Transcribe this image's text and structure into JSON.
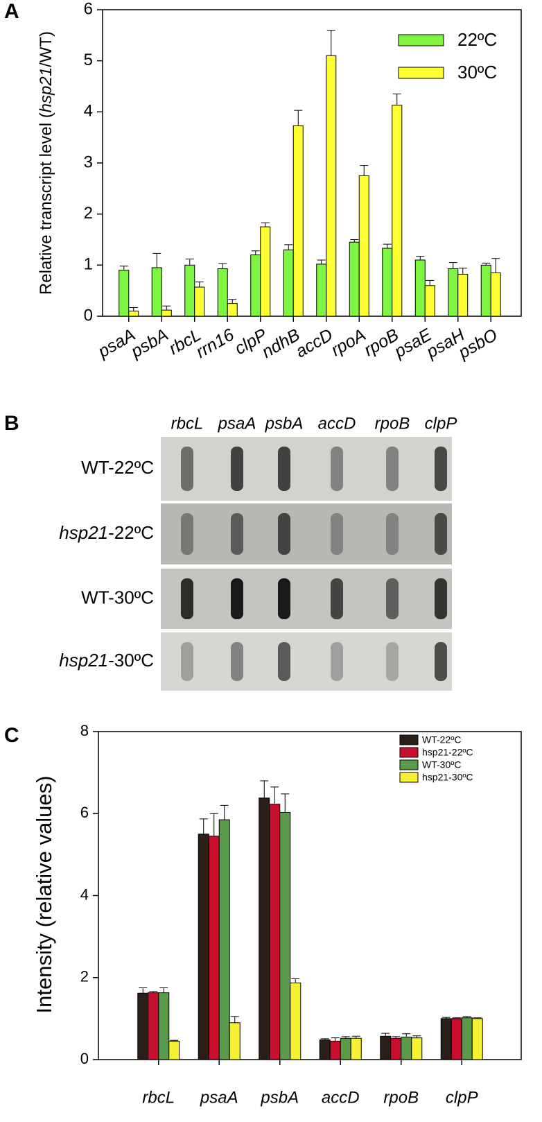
{
  "panel_labels": [
    "A",
    "B",
    "C"
  ],
  "chart_data": [
    {
      "type": "bar",
      "ylabel": {
        "plain": "Relative transcript level (",
        "italic": "hsp21",
        "tail": "/WT)"
      },
      "categories": [
        "psaA",
        "psbA",
        "rbcL",
        "rrn16",
        "clpP",
        "ndhB",
        "accD",
        "rpoA",
        "rpoB",
        "psaE",
        "psaH",
        "psbO"
      ],
      "series": [
        {
          "name": "22ºC",
          "color": "#7ef542",
          "values": [
            0.9,
            0.95,
            1.0,
            0.93,
            1.2,
            1.3,
            1.02,
            1.45,
            1.33,
            1.1,
            0.93,
            1.0
          ],
          "errors": [
            0.08,
            0.28,
            0.12,
            0.1,
            0.08,
            0.1,
            0.08,
            0.05,
            0.08,
            0.07,
            0.12,
            0.04
          ]
        },
        {
          "name": "30ºC",
          "color": "#ffff33",
          "values": [
            0.1,
            0.12,
            0.57,
            0.25,
            1.75,
            3.73,
            5.1,
            2.75,
            4.13,
            0.6,
            0.82,
            0.85
          ],
          "errors": [
            0.07,
            0.08,
            0.1,
            0.08,
            0.08,
            0.3,
            0.5,
            0.2,
            0.22,
            0.1,
            0.12,
            0.28
          ]
        }
      ],
      "ylim": [
        0,
        6
      ],
      "yticks": [
        0,
        1,
        2,
        3,
        4,
        5,
        6
      ],
      "legend": "upper right"
    },
    {
      "type": "bar",
      "ylabel": {
        "plain": "Intensity (relative values)"
      },
      "categories": [
        "rbcL",
        "psaA",
        "psbA",
        "accD",
        "rpoB",
        "clpP"
      ],
      "series": [
        {
          "name": "WT-22ºC",
          "color": "#2b1f1a",
          "values": [
            1.62,
            5.5,
            6.38,
            0.48,
            0.57,
            1.0
          ],
          "errors": [
            0.13,
            0.37,
            0.42,
            0.03,
            0.07,
            0.03
          ]
        },
        {
          "name": "hsp21-22ºC",
          "color": "#c8102e",
          "values": [
            1.63,
            5.45,
            6.23,
            0.45,
            0.52,
            1.0
          ],
          "errors": [
            0.03,
            0.55,
            0.42,
            0.08,
            0.04,
            0.02
          ]
        },
        {
          "name": "WT-30ºC",
          "color": "#5a9a4a",
          "values": [
            1.63,
            5.85,
            6.03,
            0.52,
            0.55,
            1.02
          ],
          "errors": [
            0.12,
            0.35,
            0.45,
            0.04,
            0.08,
            0.03
          ]
        },
        {
          "name": "hsp21-30ºC",
          "color": "#f5f032",
          "values": [
            0.45,
            0.9,
            1.87,
            0.52,
            0.53,
            1.0
          ],
          "errors": [
            0.02,
            0.15,
            0.1,
            0.05,
            0.05,
            0.02
          ]
        }
      ],
      "ylim": [
        0,
        8
      ],
      "yticks": [
        0,
        2,
        4,
        6,
        8
      ],
      "legend": "upper right"
    }
  ],
  "blot": {
    "columns": [
      "rbcL",
      "psaA",
      "psbA",
      "accD",
      "rpoB",
      "clpP"
    ],
    "rows": [
      {
        "plain": "WT-22ºC"
      },
      {
        "italic": "hsp21",
        "plain": "-22ºC"
      },
      {
        "plain": "WT-30ºC"
      },
      {
        "italic": "hsp21",
        "plain": "-30ºC"
      }
    ]
  }
}
